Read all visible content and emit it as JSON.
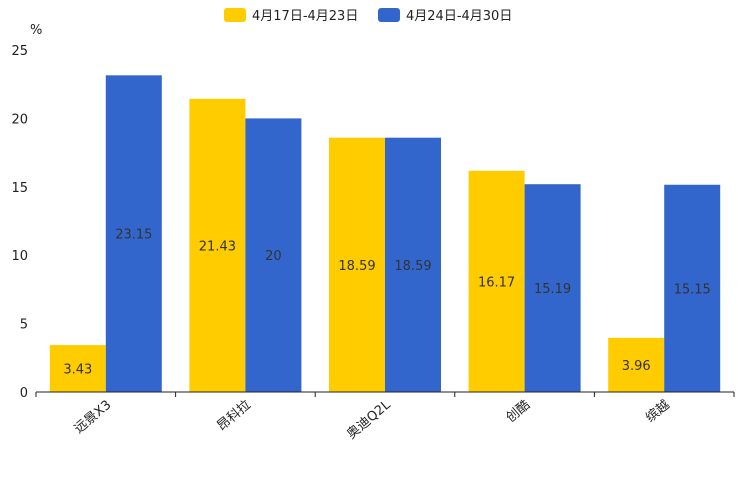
{
  "chart_data": {
    "type": "bar",
    "title": "",
    "ylabel": "%",
    "xlabel": "",
    "ylim": [
      0,
      25
    ],
    "yticks": [
      0,
      5,
      10,
      15,
      20,
      25
    ],
    "grid": false,
    "legend_position": "top-center",
    "categories": [
      "远景X3",
      "昂科拉",
      "奥迪Q2L",
      "创酷",
      "缤越"
    ],
    "series": [
      {
        "name": "4月17日-4月23日",
        "color": "#ffcc00",
        "values": [
          3.43,
          21.43,
          18.59,
          16.17,
          3.96
        ],
        "labels": [
          "3.43",
          "21.43",
          "18.59",
          "16.17",
          "3.96"
        ]
      },
      {
        "name": "4月24日-4月30日",
        "color": "#3366cc",
        "values": [
          23.15,
          20,
          18.59,
          15.19,
          15.15
        ],
        "labels": [
          "23.15",
          "20",
          "18.59",
          "15.19",
          "15.15"
        ]
      }
    ]
  }
}
